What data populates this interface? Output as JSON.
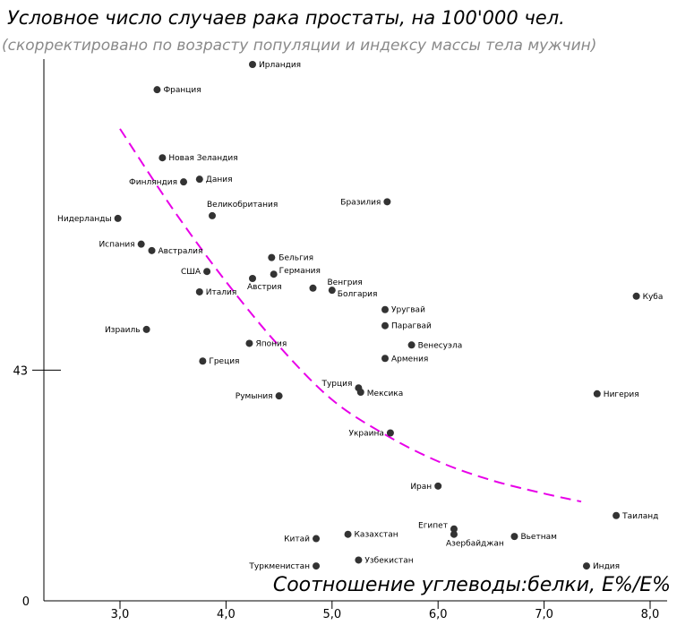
{
  "chart_data": {
    "type": "scatter",
    "title": "Условное число случаев рака простаты, на 100'000 чел.",
    "subtitle": "(скорректировано по возрасту популяции и индексу массы тела мужчин)",
    "xlabel": "Соотношение углеводы:белки, E%/E%",
    "ylabel": "",
    "xlim": [
      2.3,
      8.15
    ],
    "ylim": [
      0,
      103
    ],
    "x_ticks": [
      "3,0",
      "4,0",
      "5,0",
      "6,0",
      "7,0",
      "8,0"
    ],
    "y_ticks": [
      "0",
      "43"
    ],
    "grid": false,
    "colors": {
      "points": "#333333",
      "trend": "#e800e8"
    },
    "points": [
      {
        "label": "Ирландия",
        "x": 4.25,
        "y": 100.0
      },
      {
        "label": "Франция",
        "x": 3.35,
        "y": 95.3
      },
      {
        "label": "Новая  Зеландия",
        "x": 3.4,
        "y": 82.6
      },
      {
        "label": "Дания",
        "x": 3.75,
        "y": 78.6
      },
      {
        "label": "Финляндия",
        "x": 3.6,
        "y": 78.1
      },
      {
        "label": "Бразилия",
        "x": 5.52,
        "y": 74.4
      },
      {
        "label": "Великобритания",
        "x": 3.87,
        "y": 71.8
      },
      {
        "label": "Нидерланды",
        "x": 2.98,
        "y": 71.3
      },
      {
        "label": "Испания",
        "x": 3.2,
        "y": 66.5
      },
      {
        "label": "Австралия",
        "x": 3.3,
        "y": 65.3
      },
      {
        "label": "Бельгия",
        "x": 4.43,
        "y": 64.0
      },
      {
        "label": "США",
        "x": 3.82,
        "y": 61.4
      },
      {
        "label": "Германия",
        "x": 4.45,
        "y": 60.9
      },
      {
        "label": "Австрия",
        "x": 4.25,
        "y": 60.1
      },
      {
        "label": "Венгрия",
        "x": 4.82,
        "y": 58.3
      },
      {
        "label": "Болгария",
        "x": 5.0,
        "y": 57.9
      },
      {
        "label": "Италия",
        "x": 3.75,
        "y": 57.6
      },
      {
        "label": "Куба",
        "x": 7.87,
        "y": 56.8
      },
      {
        "label": "Уругвай",
        "x": 5.5,
        "y": 54.3
      },
      {
        "label": "Парагвай",
        "x": 5.5,
        "y": 51.3
      },
      {
        "label": "Израиль",
        "x": 3.25,
        "y": 50.6
      },
      {
        "label": "Япония",
        "x": 4.22,
        "y": 48.0
      },
      {
        "label": "Венесуэла",
        "x": 5.75,
        "y": 47.7
      },
      {
        "label": "Армения",
        "x": 5.5,
        "y": 45.2
      },
      {
        "label": "Греция",
        "x": 3.78,
        "y": 44.7
      },
      {
        "label": "Турция",
        "x": 5.25,
        "y": 39.7
      },
      {
        "label": "Мексика",
        "x": 5.27,
        "y": 38.9
      },
      {
        "label": "Нигерия",
        "x": 7.5,
        "y": 38.6
      },
      {
        "label": "Румыния",
        "x": 4.5,
        "y": 38.2
      },
      {
        "label": "Украина",
        "x": 5.55,
        "y": 31.3
      },
      {
        "label": "Иран",
        "x": 6.0,
        "y": 21.4
      },
      {
        "label": "Таиланд",
        "x": 7.68,
        "y": 15.9
      },
      {
        "label": "Египет",
        "x": 6.15,
        "y": 13.4
      },
      {
        "label": "Азербайджан",
        "x": 6.15,
        "y": 12.4
      },
      {
        "label": "Вьетнам",
        "x": 6.72,
        "y": 12.0
      },
      {
        "label": "Казахстан",
        "x": 5.15,
        "y": 12.4
      },
      {
        "label": "Китай",
        "x": 4.85,
        "y": 11.6
      },
      {
        "label": "Узбекистан",
        "x": 5.25,
        "y": 7.6
      },
      {
        "label": "Туркменистан",
        "x": 4.85,
        "y": 6.5
      },
      {
        "label": "Индия",
        "x": 7.4,
        "y": 6.5
      }
    ],
    "trend": {
      "style": "dashed",
      "x": [
        3.0,
        3.5,
        4.0,
        4.5,
        5.0,
        5.5,
        6.0,
        6.5,
        7.0,
        7.35
      ],
      "y": [
        88.0,
        73.0,
        59.5,
        47.5,
        37.5,
        31.0,
        26.0,
        22.5,
        20.0,
        18.5
      ]
    }
  }
}
